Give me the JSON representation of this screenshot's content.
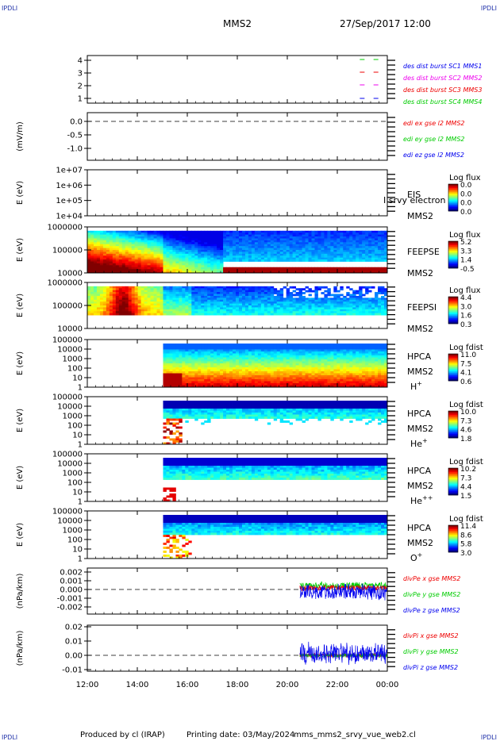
{
  "header": {
    "corner_label": "IPDLI",
    "spacecraft": "MMS2",
    "datetime": "27/Sep/2017 12:00"
  },
  "footer": {
    "produced_by": "Produced by cl (IRAP)",
    "printing_date": "Printing date: 03/May/2024",
    "script_name": "mms_mms2_srvy_vue_web2.cl"
  },
  "colors": {
    "red": "#ff0000",
    "green": "#00cc00",
    "blue": "#0000ee",
    "magenta": "#ee00ee",
    "orange": "#ff6600"
  },
  "chart_data": {
    "type": "table",
    "time_axis": {
      "range": [
        "12:00",
        "00:00"
      ],
      "tick_labels": [
        "12:00",
        "14:00",
        "16:00",
        "18:00",
        "20:00",
        "22:00",
        "00:00"
      ]
    },
    "panels": [
      {
        "id": "burst",
        "type": "scatter",
        "yticks": [
          "4",
          "3",
          "2",
          "1"
        ],
        "legend": [
          {
            "text": "des dist burst SC1 MMS1",
            "color": "#0000ee"
          },
          {
            "text": "des dist burst SC2 MMS2",
            "color": "#ee00ee"
          },
          {
            "text": "des dist burst SC3 MMS3",
            "color": "#ee0000"
          },
          {
            "text": "des dist burst SC4 MMS4",
            "color": "#00cc00"
          }
        ]
      },
      {
        "id": "edi",
        "type": "line",
        "ylabel": "(mV/m)",
        "yticks": [
          "0.0",
          "-0.5",
          "-1.0"
        ],
        "legend": [
          {
            "text": "edi ex gse l2 MMS2",
            "color": "#ee0000"
          },
          {
            "text": "edi ey gse l2 MMS2",
            "color": "#00cc00"
          },
          {
            "text": "edi ez gse l2 MMS2",
            "color": "#0000ee"
          }
        ]
      },
      {
        "id": "eis",
        "type": "heatmap",
        "ylabel": "E (eV)",
        "yticks": [
          "1e+07",
          "1e+06",
          "1e+05",
          "1e+04"
        ],
        "right_label": "EIS",
        "right_sub": "MMS2",
        "overlay_text": "I srvy electron to",
        "colorbar_title": "Log flux",
        "colorbar_ticks": [
          "0.0",
          "0.0",
          "0.0",
          "0.0"
        ]
      },
      {
        "id": "feepse",
        "type": "heatmap",
        "ylabel": "E (eV)",
        "yticks": [
          "1000000",
          "100000",
          "10000"
        ],
        "right_label": "FEEPSE",
        "right_sub": "MMS2",
        "colorbar_title": "Log flux",
        "colorbar_ticks": [
          "5.2",
          "3.3",
          "1.4",
          "-0.5"
        ]
      },
      {
        "id": "feepsi",
        "type": "heatmap",
        "ylabel": "E (eV)",
        "yticks": [
          "1000000",
          "100000",
          "10000"
        ],
        "right_label": "FEEPSI",
        "right_sub": "MMS2",
        "colorbar_title": "Log flux",
        "colorbar_ticks": [
          "4.4",
          "3.0",
          "1.6",
          "0.3"
        ]
      },
      {
        "id": "hpca_h",
        "type": "heatmap",
        "ylabel": "E (eV)",
        "yticks": [
          "100000",
          "10000",
          "1000",
          "100",
          "10",
          "1"
        ],
        "right_label": "HPCA",
        "right_sub": "MMS2",
        "species": "H",
        "species_sup": "+",
        "colorbar_title": "Log fdist",
        "colorbar_ticks": [
          "11.0",
          "7.5",
          "4.1",
          "0.6"
        ]
      },
      {
        "id": "hpca_he",
        "type": "heatmap",
        "ylabel": "E (eV)",
        "yticks": [
          "100000",
          "10000",
          "1000",
          "100",
          "10",
          "1"
        ],
        "right_label": "HPCA",
        "right_sub": "MMS2",
        "species": "He",
        "species_sup": "+",
        "colorbar_title": "Log fdist",
        "colorbar_ticks": [
          "10.0",
          "7.3",
          "4.6",
          "1.8"
        ]
      },
      {
        "id": "hpca_hepp",
        "type": "heatmap",
        "ylabel": "E (eV)",
        "yticks": [
          "100000",
          "10000",
          "1000",
          "100",
          "10",
          "1"
        ],
        "right_label": "HPCA",
        "right_sub": "MMS2",
        "species": "He",
        "species_sup": "++",
        "colorbar_title": "Log fdist",
        "colorbar_ticks": [
          "10.2",
          "7.3",
          "4.4",
          "1.5"
        ]
      },
      {
        "id": "hpca_o",
        "type": "heatmap",
        "ylabel": "E (eV)",
        "yticks": [
          "100000",
          "10000",
          "1000",
          "100",
          "10",
          "1"
        ],
        "right_label": "HPCA",
        "right_sub": "MMS2",
        "species": "O",
        "species_sup": "+",
        "colorbar_title": "Log fdist",
        "colorbar_ticks": [
          "11.4",
          "8.6",
          "5.8",
          "3.0"
        ]
      },
      {
        "id": "divpe",
        "type": "line",
        "ylabel": "(nPa/km)",
        "yticks": [
          "0.002",
          "0.001",
          "0.000",
          "-0.001",
          "-0.002"
        ],
        "legend": [
          {
            "text": "divPe x gse MMS2",
            "color": "#ee0000"
          },
          {
            "text": "divPe y gse MMS2",
            "color": "#00cc00"
          },
          {
            "text": "divPe z gse MMS2",
            "color": "#0000ee"
          }
        ]
      },
      {
        "id": "divpi",
        "type": "line",
        "ylabel": "(nPa/km)",
        "yticks": [
          "0.02",
          "0.01",
          "0.00",
          "-0.01"
        ],
        "legend": [
          {
            "text": "divPi x gse MMS2",
            "color": "#ee0000"
          },
          {
            "text": "divPi y gse MMS2",
            "color": "#00cc00"
          },
          {
            "text": "divPi z gse MMS2",
            "color": "#0000ee"
          }
        ]
      }
    ]
  }
}
